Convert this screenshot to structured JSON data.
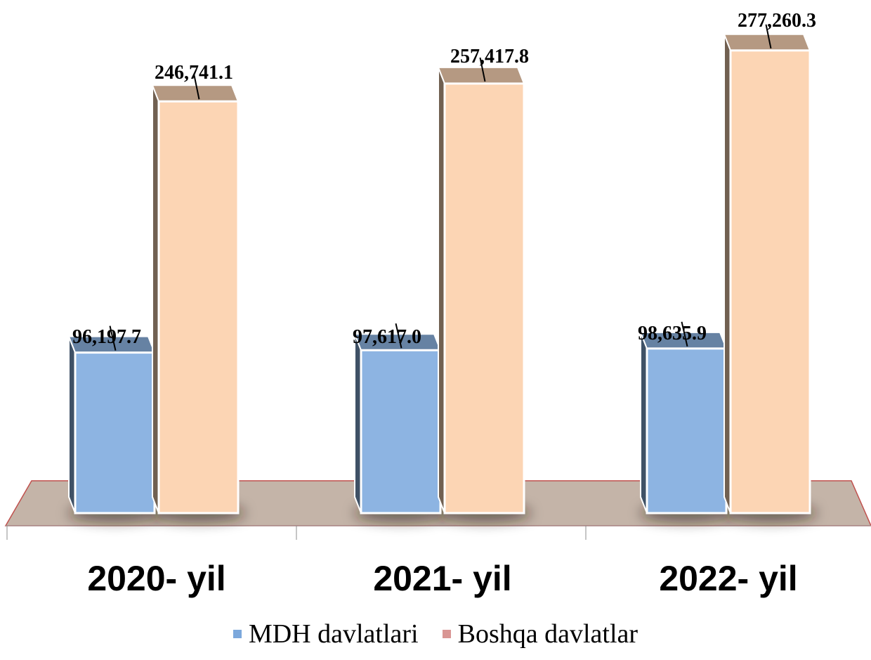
{
  "chart_data": {
    "type": "bar",
    "categories": [
      "2020- yil",
      "2021- yil",
      "2022- yil"
    ],
    "series": [
      {
        "name": "MDH davlatlari",
        "values": [
          96197.7,
          97617.0,
          98635.9
        ],
        "labels": [
          "96,197.7",
          "97,617.0",
          "98,635.9"
        ],
        "color": "#8DB4E2",
        "legend_color": "#7CA8DC"
      },
      {
        "name": "Boshqa davlatlar",
        "values": [
          246741.1,
          257417.8,
          277260.3
        ],
        "labels": [
          "246,741.1",
          "257,417.8",
          "277,260.3"
        ],
        "color": "#FCD5B4",
        "legend_color": "#D99694"
      }
    ],
    "legend_position": "bottom",
    "grid": false,
    "floor_color": "#C4B4A8"
  }
}
